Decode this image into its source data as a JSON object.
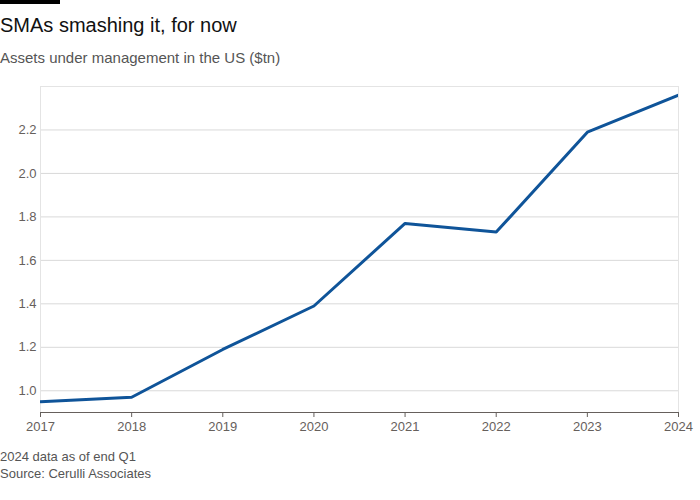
{
  "chart_data": {
    "type": "line",
    "title": "SMAs smashing it, for now",
    "subtitle": "Assets under management in the US ($tn)",
    "notes": [
      "2024 data as of end Q1",
      "Source: Cerulli Associates"
    ],
    "x": [
      2017,
      2018,
      2019,
      2020,
      2021,
      2022,
      2023,
      2024
    ],
    "values": [
      0.95,
      0.97,
      1.19,
      1.39,
      1.77,
      1.73,
      2.19,
      2.36
    ],
    "color": "#0f5499",
    "xlim": [
      2017,
      2024
    ],
    "xticks": [
      2017,
      2018,
      2019,
      2020,
      2021,
      2022,
      2023,
      2024
    ],
    "ylim": [
      0.9,
      2.4
    ],
    "yticks": [
      {
        "value": 1,
        "label": "1.0"
      },
      1.2,
      1.4,
      1.6,
      1.8,
      {
        "value": 2,
        "label": "2.0"
      },
      2.2
    ],
    "grid": true
  }
}
